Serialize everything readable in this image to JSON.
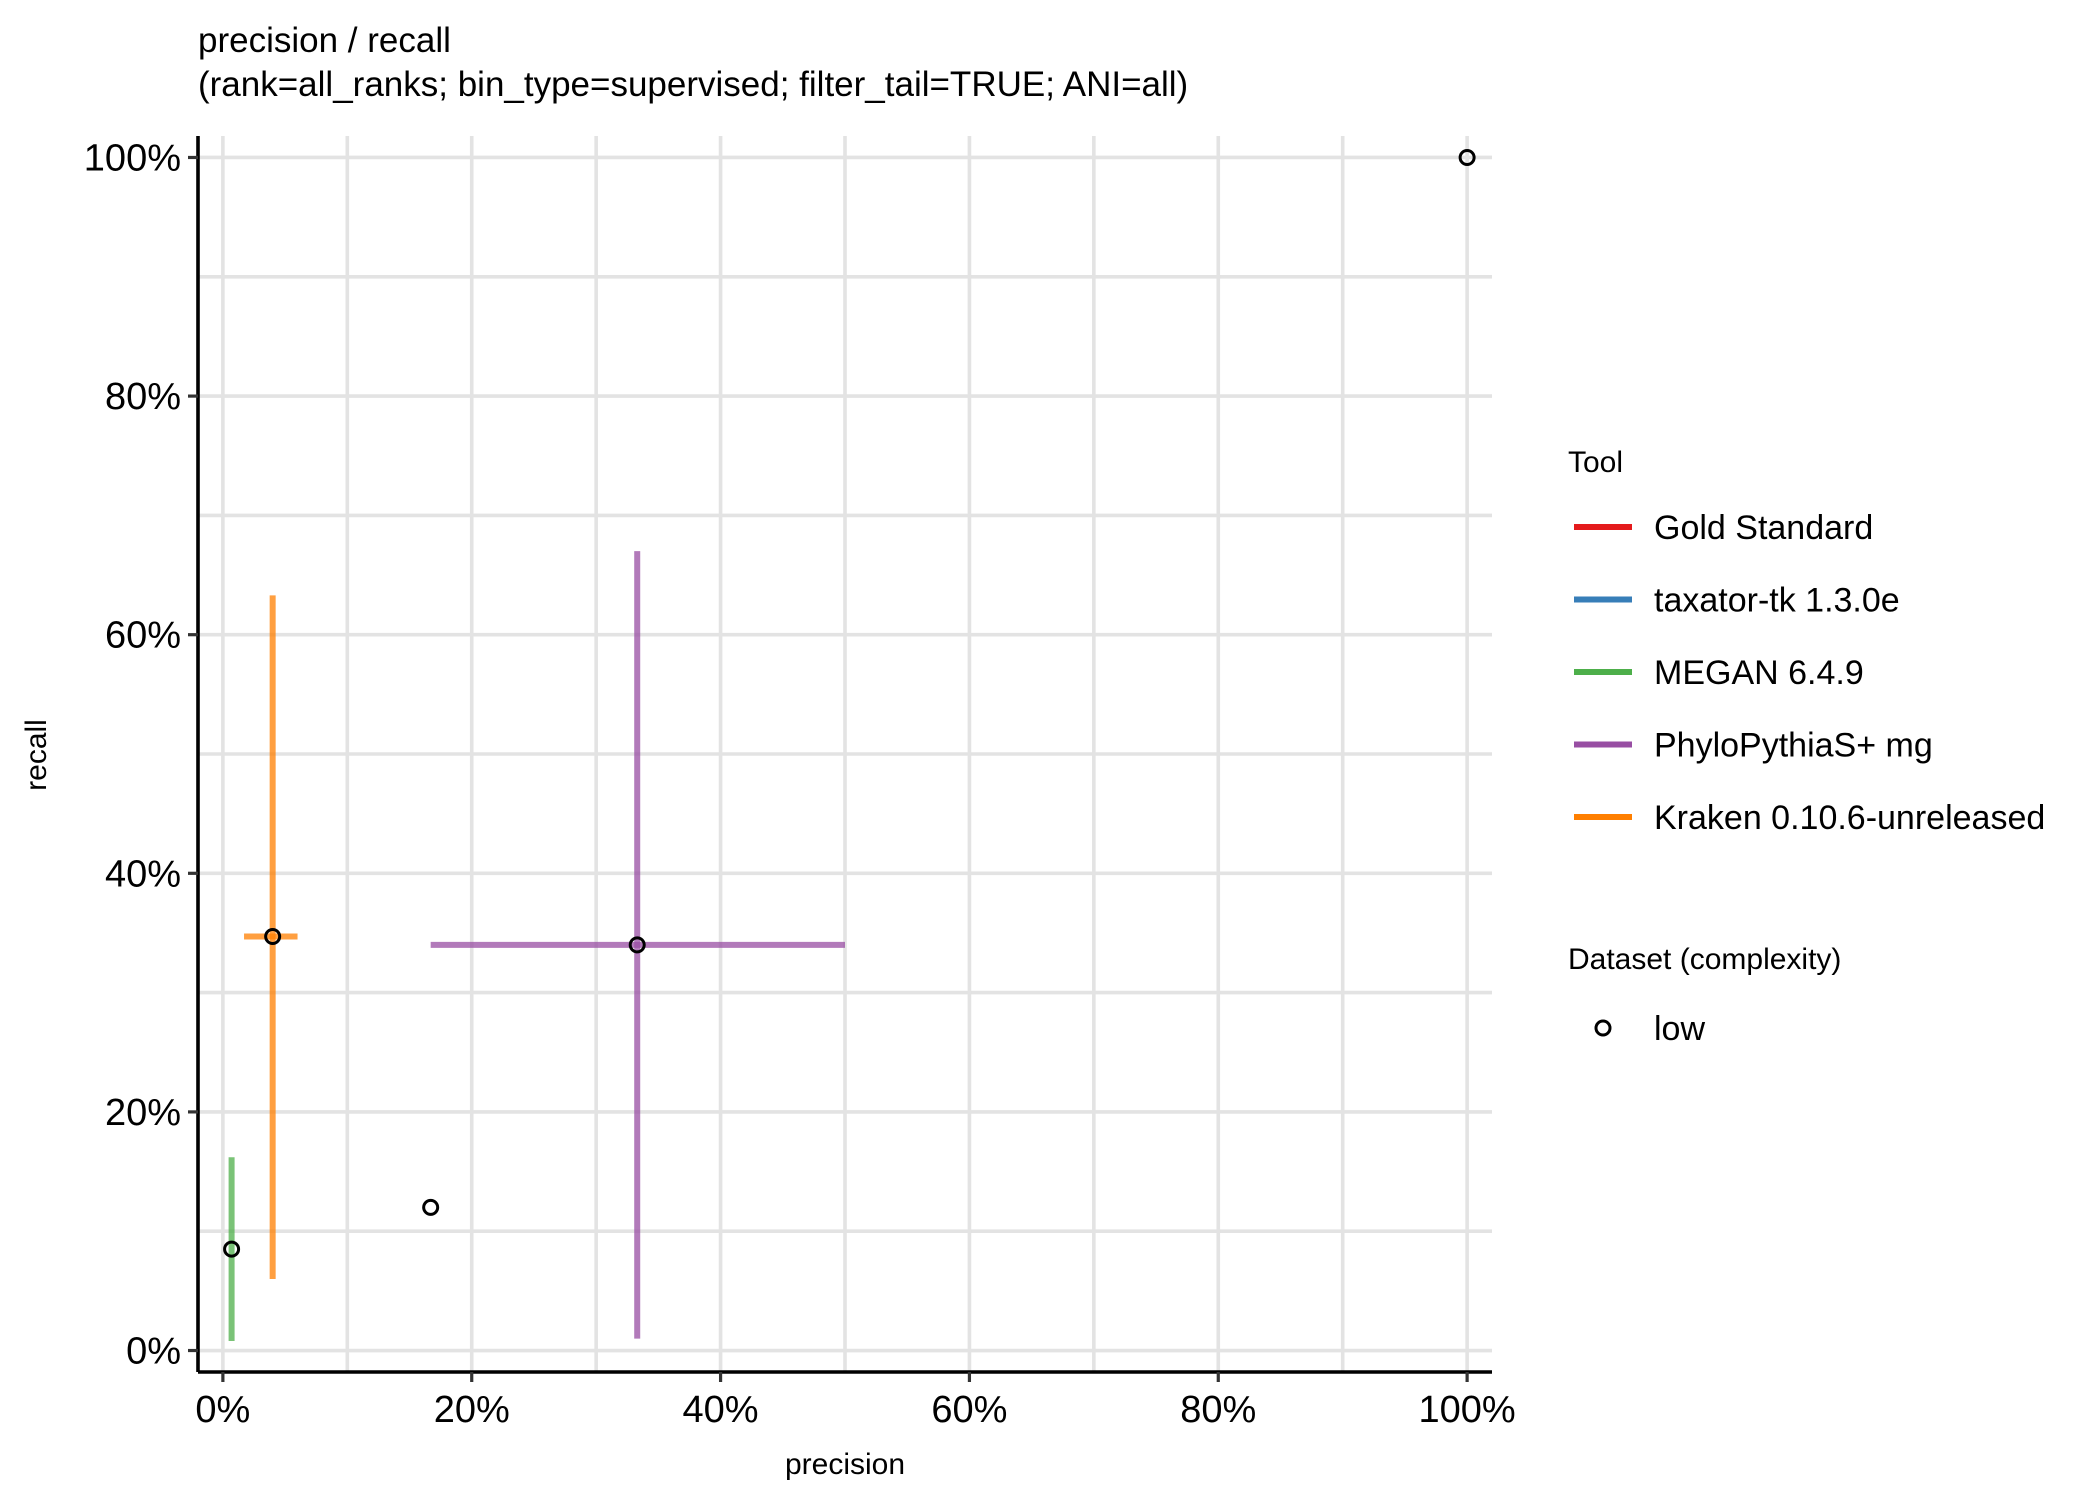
{
  "chart_data": {
    "type": "scatter",
    "title": "precision / recall",
    "subtitle": "(rank=all_ranks; bin_type=supervised; filter_tail=TRUE; ANI=all)",
    "xlabel": "precision",
    "ylabel": "recall",
    "xlim": [
      -0.02,
      1.02
    ],
    "ylim": [
      -0.018,
      1.018
    ],
    "x_ticks": [
      0,
      0.2,
      0.4,
      0.6,
      0.8,
      1.0
    ],
    "x_tick_labels": [
      "0%",
      "20%",
      "40%",
      "60%",
      "80%",
      "100%"
    ],
    "y_ticks": [
      0,
      0.2,
      0.4,
      0.6,
      0.8,
      1.0
    ],
    "y_tick_labels": [
      "0%",
      "20%",
      "40%",
      "60%",
      "80%",
      "100%"
    ],
    "grid": true,
    "legend_position": "right",
    "legend": {
      "tool_title": "Tool",
      "tools": [
        {
          "name": "Gold Standard",
          "color": "#e41a1c"
        },
        {
          "name": "taxator-tk 1.3.0e",
          "color": "#377eb8"
        },
        {
          "name": "MEGAN 6.4.9",
          "color": "#4daf4a"
        },
        {
          "name": "PhyloPythiaS+ mg",
          "color": "#984ea3"
        },
        {
          "name": "Kraken 0.10.6-unreleased",
          "color": "#ff7f00"
        }
      ],
      "dataset_title": "Dataset (complexity)",
      "datasets": [
        {
          "name": "low",
          "shape": "open-circle"
        }
      ]
    },
    "series": [
      {
        "name": "Gold Standard",
        "color": "#e41a1c",
        "x": 1.0,
        "y": 1.0,
        "x_range": null,
        "y_range": null
      },
      {
        "name": "taxator-tk 1.3.0e",
        "color": "#377eb8",
        "x": 0.167,
        "y": 0.12,
        "x_range": null,
        "y_range": null
      },
      {
        "name": "MEGAN 6.4.9",
        "color": "#4daf4a",
        "x": 0.007,
        "y": 0.085,
        "x_range": null,
        "y_range": [
          0.008,
          0.162
        ]
      },
      {
        "name": "PhyloPythiaS+ mg",
        "color": "#984ea3",
        "x": 0.333,
        "y": 0.34,
        "x_range": [
          0.167,
          0.5
        ],
        "y_range": [
          0.01,
          0.67
        ]
      },
      {
        "name": "Kraken 0.10.6-unreleased",
        "color": "#ff7f00",
        "x": 0.04,
        "y": 0.347,
        "x_range": [
          0.017,
          0.06
        ],
        "y_range": [
          0.06,
          0.633
        ]
      }
    ]
  }
}
